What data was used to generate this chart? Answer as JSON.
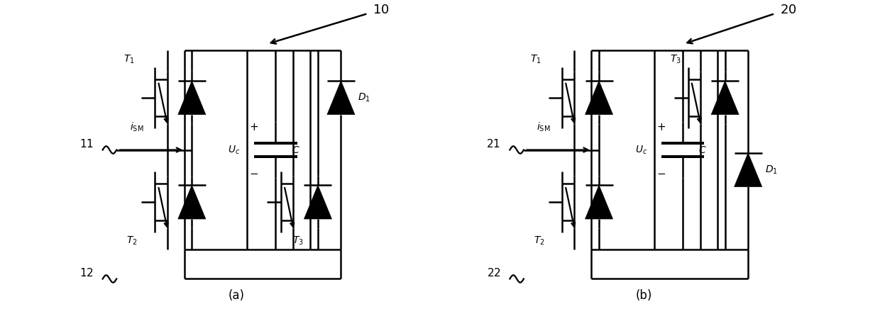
{
  "background_color": "#ffffff",
  "line_color": "#000000",
  "line_width": 1.8,
  "fig_width": 12.4,
  "fig_height": 4.36
}
